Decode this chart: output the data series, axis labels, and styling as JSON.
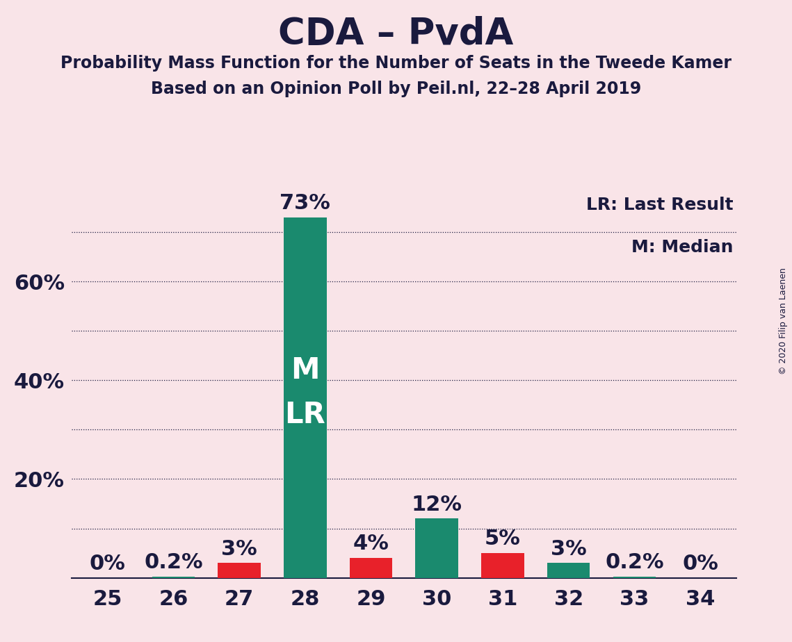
{
  "title": "CDA – PvdA",
  "subtitle1": "Probability Mass Function for the Number of Seats in the Tweede Kamer",
  "subtitle2": "Based on an Opinion Poll by Peil.nl, 22–28 April 2019",
  "copyright": "© 2020 Filip van Laenen",
  "categories": [
    25,
    26,
    27,
    28,
    29,
    30,
    31,
    32,
    33,
    34
  ],
  "values": [
    0,
    0.2,
    3,
    73,
    4,
    12,
    5,
    3,
    0.2,
    0
  ],
  "bar_colors": [
    "#1a8a6e",
    "#1a8a6e",
    "#e8212a",
    "#1a8a6e",
    "#e8212a",
    "#1a8a6e",
    "#e8212a",
    "#1a8a6e",
    "#1a8a6e",
    "#1a8a6e"
  ],
  "background_color": "#f9e4e8",
  "text_color": "#1a1a3e",
  "bar_label_color": "#1a1a3e",
  "median_bar_index": 3,
  "m_label": "M",
  "lr_label": "LR",
  "bar_label_inside_color": "#ffffff",
  "ylim": [
    0,
    78
  ],
  "grid_yticks": [
    10,
    20,
    30,
    40,
    50,
    60,
    70
  ],
  "label_yticks": [
    20,
    40,
    60
  ],
  "label_ytick_labels": [
    "20%",
    "40%",
    "60%"
  ],
  "grid_color": "#1a1a3e",
  "title_fontsize": 38,
  "subtitle_fontsize": 17,
  "axis_fontsize": 22,
  "bar_label_fontsize": 22,
  "inside_label_fontsize": 30,
  "legend_text1": "LR: Last Result",
  "legend_text2": "M: Median",
  "legend_fontsize": 18
}
